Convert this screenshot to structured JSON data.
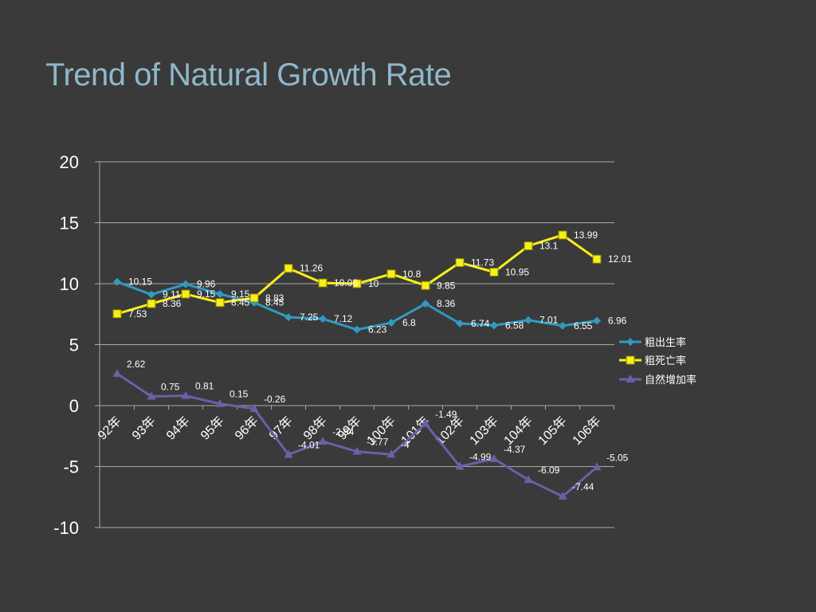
{
  "slide": {
    "title": "Trend of Natural Growth Rate"
  },
  "chart_data": {
    "type": "line",
    "title": "",
    "xlabel": "",
    "ylabel": "",
    "ylim": [
      -10,
      20
    ],
    "yticks": [
      20,
      15,
      10,
      5,
      0,
      -5,
      -10
    ],
    "grid": true,
    "legend_position": "right",
    "categories": [
      "92年",
      "93年",
      "94年",
      "95年",
      "96年",
      "97年",
      "98年",
      "99年",
      "100年",
      "101年",
      "102年",
      "103年",
      "104年",
      "105年",
      "106年"
    ],
    "series": [
      {
        "name": "粗出生率",
        "color": "#2f9bc1",
        "marker": "diamond",
        "values": [
          10.15,
          9.11,
          9.96,
          9.15,
          8.45,
          7.25,
          7.12,
          6.23,
          6.8,
          8.36,
          6.74,
          6.58,
          7.01,
          6.55,
          6.96
        ]
      },
      {
        "name": "粗死亡率",
        "color": "#f7ef1a",
        "marker": "square",
        "values": [
          7.53,
          8.36,
          9.15,
          8.45,
          8.83,
          11.26,
          10.06,
          10,
          10.8,
          9.85,
          11.73,
          10.95,
          13.1,
          13.99,
          12.01
        ]
      },
      {
        "name": "自然增加率",
        "color": "#6c5fa8",
        "marker": "triangle",
        "values": [
          2.62,
          0.75,
          0.81,
          0.15,
          -0.26,
          -4.01,
          -2.94,
          -3.77,
          -4,
          -1.49,
          -4.99,
          -4.37,
          -6.09,
          -7.44,
          -5.05
        ]
      }
    ]
  }
}
